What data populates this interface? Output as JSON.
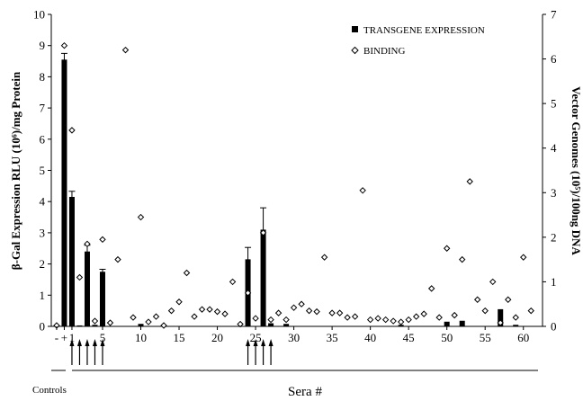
{
  "chart_data": {
    "type": "bar",
    "left_axis": {
      "label": "β-Gal Expression RLU (10⁶)/mg Protein",
      "ylim": [
        0,
        10
      ],
      "ticks": [
        0,
        1,
        2,
        3,
        4,
        5,
        6,
        7,
        8,
        9,
        10
      ]
    },
    "right_axis": {
      "label": "Vector Genomes (10⁵)/100ng DNA",
      "ylim": [
        0,
        7
      ],
      "ticks": [
        0,
        1,
        2,
        3,
        4,
        5,
        6,
        7
      ]
    },
    "x_tick_labels": [
      "-",
      "+",
      "1",
      "5",
      "10",
      "15",
      "20",
      "25",
      "30",
      "35",
      "40",
      "45",
      "50",
      "55",
      "60"
    ],
    "x_tick_positions": [
      -1,
      0,
      1,
      5,
      10,
      15,
      20,
      25,
      30,
      35,
      40,
      45,
      50,
      55,
      60
    ],
    "xlim": [
      -1.7,
      62.5
    ],
    "xlabel": "Sera #",
    "controls_label": "Controls",
    "legend": [
      {
        "label": "TRANSGENE EXPRESSION",
        "marker": "square"
      },
      {
        "label": "BINDING",
        "marker": "diamond"
      }
    ],
    "series": [
      {
        "name": "TRANSGENE EXPRESSION",
        "axis": "left",
        "points": [
          {
            "x": 0,
            "y": 8.55,
            "err": 0.2
          },
          {
            "x": 1,
            "y": 4.15,
            "err": 0.18
          },
          {
            "x": 2,
            "y": 0.03
          },
          {
            "x": 3,
            "y": 2.4,
            "err": 0.2
          },
          {
            "x": 4,
            "y": 0.05
          },
          {
            "x": 5,
            "y": 1.75,
            "err": 0.08
          },
          {
            "x": 10,
            "y": 0.08
          },
          {
            "x": 24,
            "y": 2.15,
            "err": 0.38
          },
          {
            "x": 26,
            "y": 3.1,
            "err": 0.7
          },
          {
            "x": 27,
            "y": 0.1
          },
          {
            "x": 29,
            "y": 0.08
          },
          {
            "x": 44,
            "y": 0.05
          },
          {
            "x": 50,
            "y": 0.15
          },
          {
            "x": 52,
            "y": 0.18
          },
          {
            "x": 57,
            "y": 0.55
          },
          {
            "x": 59,
            "y": 0.05
          }
        ]
      },
      {
        "name": "BINDING",
        "axis": "right",
        "points": [
          {
            "x": -1,
            "y": 0.02
          },
          {
            "x": 0,
            "y": 6.3
          },
          {
            "x": 1,
            "y": 4.4
          },
          {
            "x": 2,
            "y": 1.1
          },
          {
            "x": 3,
            "y": 1.85
          },
          {
            "x": 4,
            "y": 0.12
          },
          {
            "x": 5,
            "y": 1.95
          },
          {
            "x": 6,
            "y": 0.08
          },
          {
            "x": 7,
            "y": 1.5
          },
          {
            "x": 8,
            "y": 6.2
          },
          {
            "x": 9,
            "y": 0.2
          },
          {
            "x": 10,
            "y": 2.45
          },
          {
            "x": 11,
            "y": 0.1
          },
          {
            "x": 12,
            "y": 0.22
          },
          {
            "x": 13,
            "y": 0.02
          },
          {
            "x": 14,
            "y": 0.35
          },
          {
            "x": 15,
            "y": 0.55
          },
          {
            "x": 16,
            "y": 1.2
          },
          {
            "x": 17,
            "y": 0.22
          },
          {
            "x": 18,
            "y": 0.38
          },
          {
            "x": 19,
            "y": 0.38
          },
          {
            "x": 20,
            "y": 0.33
          },
          {
            "x": 21,
            "y": 0.28
          },
          {
            "x": 22,
            "y": 1.0
          },
          {
            "x": 23,
            "y": 0.05
          },
          {
            "x": 24,
            "y": 0.75
          },
          {
            "x": 25,
            "y": 0.18
          },
          {
            "x": 26,
            "y": 2.1
          },
          {
            "x": 27,
            "y": 0.15
          },
          {
            "x": 28,
            "y": 0.3
          },
          {
            "x": 29,
            "y": 0.15
          },
          {
            "x": 30,
            "y": 0.42
          },
          {
            "x": 31,
            "y": 0.5
          },
          {
            "x": 32,
            "y": 0.35
          },
          {
            "x": 33,
            "y": 0.33
          },
          {
            "x": 34,
            "y": 1.55
          },
          {
            "x": 35,
            "y": 0.3
          },
          {
            "x": 36,
            "y": 0.3
          },
          {
            "x": 37,
            "y": 0.2
          },
          {
            "x": 38,
            "y": 0.22
          },
          {
            "x": 39,
            "y": 3.05
          },
          {
            "x": 40,
            "y": 0.15
          },
          {
            "x": 41,
            "y": 0.18
          },
          {
            "x": 42,
            "y": 0.15
          },
          {
            "x": 43,
            "y": 0.12
          },
          {
            "x": 44,
            "y": 0.1
          },
          {
            "x": 45,
            "y": 0.15
          },
          {
            "x": 46,
            "y": 0.22
          },
          {
            "x": 47,
            "y": 0.28
          },
          {
            "x": 48,
            "y": 0.85
          },
          {
            "x": 49,
            "y": 0.2
          },
          {
            "x": 50,
            "y": 1.75
          },
          {
            "x": 51,
            "y": 0.25
          },
          {
            "x": 52,
            "y": 1.5
          },
          {
            "x": 53,
            "y": 3.25
          },
          {
            "x": 54,
            "y": 0.6
          },
          {
            "x": 55,
            "y": 0.35
          },
          {
            "x": 56,
            "y": 1.0
          },
          {
            "x": 57,
            "y": 0.08
          },
          {
            "x": 58,
            "y": 0.6
          },
          {
            "x": 59,
            "y": 0.2
          },
          {
            "x": 60,
            "y": 1.55
          },
          {
            "x": 61,
            "y": 0.35
          }
        ]
      }
    ],
    "arrows_at": [
      1,
      2,
      3,
      4,
      5,
      24,
      25,
      26,
      27
    ],
    "grid": false,
    "legend_position": "top-right"
  }
}
